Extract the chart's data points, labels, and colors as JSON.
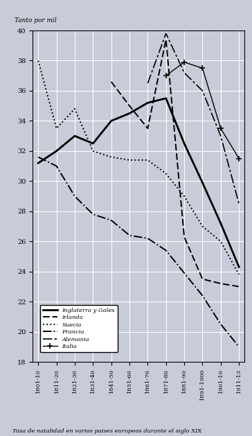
{
  "x_labels": [
    "1801-10",
    "1811-20",
    "1821-30",
    "1831-40",
    "1841-50",
    "1851-60",
    "1861-70",
    "1871-80",
    "1881-90",
    "1891-1900",
    "1901-10",
    "1911-13"
  ],
  "x_positions": [
    0,
    1,
    2,
    3,
    4,
    5,
    6,
    7,
    8,
    9,
    10,
    11
  ],
  "title_y": "Tanto por mil",
  "caption": "Tasa de natalidad en varios paises europeos durante el siglo XIX",
  "ylim": [
    18,
    40
  ],
  "yticks": [
    18,
    20,
    22,
    24,
    26,
    28,
    30,
    32,
    34,
    36,
    38,
    40
  ],
  "Inglaterra y Gales": [
    31.2,
    32.0,
    33.0,
    32.5,
    34.0,
    34.5,
    35.2,
    35.5,
    32.5,
    29.9,
    27.2,
    24.3
  ],
  "Irlanda": [
    null,
    null,
    null,
    null,
    36.6,
    35.0,
    33.5,
    39.4,
    26.3,
    23.5,
    23.2,
    23.0
  ],
  "Suecia": [
    38.0,
    33.5,
    34.8,
    32.0,
    31.6,
    31.4,
    31.4,
    30.5,
    29.0,
    27.0,
    26.0,
    23.8
  ],
  "Francia": [
    31.6,
    31.0,
    29.0,
    27.8,
    27.4,
    26.4,
    26.2,
    25.4,
    23.9,
    22.4,
    20.5,
    19.0
  ],
  "Alemania": [
    null,
    null,
    null,
    null,
    null,
    null,
    36.5,
    39.8,
    37.2,
    36.0,
    33.0,
    28.5
  ],
  "Italia": [
    null,
    null,
    null,
    null,
    null,
    null,
    null,
    37.0,
    37.9,
    37.5,
    33.5,
    31.5
  ],
  "background_color": "#c8ccd8",
  "grid_color": "#ffffff",
  "fig_bg": "#c8ccd8"
}
